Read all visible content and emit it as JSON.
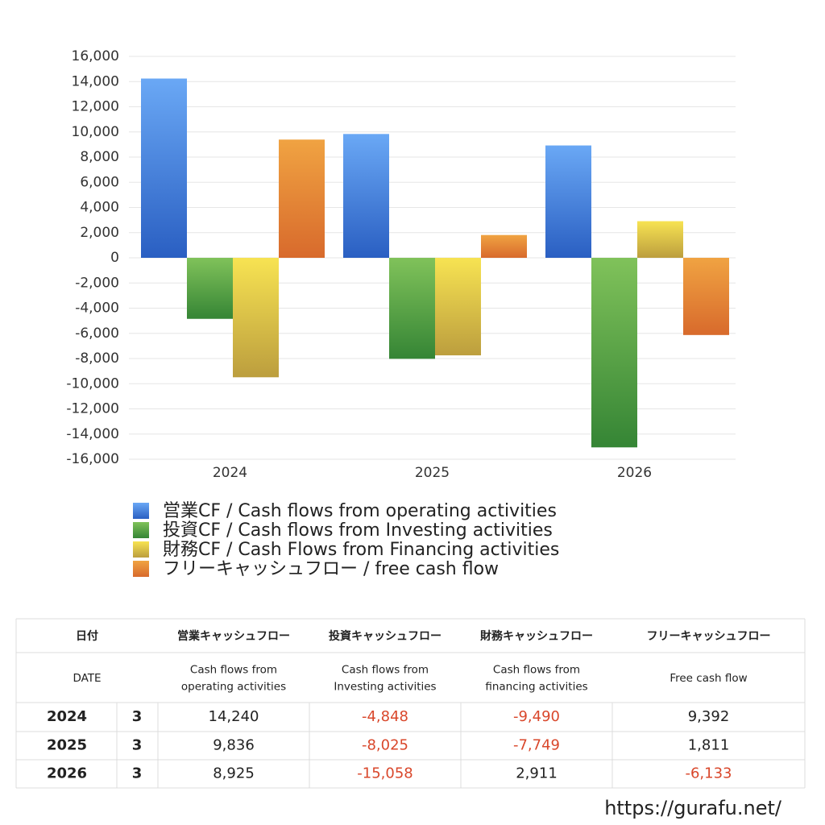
{
  "chart_data": {
    "type": "bar",
    "categories": [
      "2024",
      "2025",
      "2026"
    ],
    "series": [
      {
        "name": "営業CF / Cash flows from operating activities",
        "color": "#4a86e0",
        "gradient": [
          "#6aa8f5",
          "#2a5fc2"
        ],
        "values": [
          14240,
          9836,
          8925
        ],
        "value_labels": [
          "14,240",
          "9,836",
          "8,925"
        ]
      },
      {
        "name": "投資CF / Cash flows from Investing activities",
        "color": "#5aa545",
        "gradient": [
          "#80c25a",
          "#358535"
        ],
        "values": [
          -4848,
          -8025,
          -15058
        ],
        "value_labels": [
          "-4,848",
          "-8,025",
          "-15,058"
        ]
      },
      {
        "name": "財務CF / Cash Flows from Financing activities",
        "color": "#e6cc45",
        "gradient": [
          "#f7e352",
          "#bc9e3e"
        ],
        "values": [
          -9490,
          -7749,
          2911
        ],
        "value_labels": [
          "-9,490",
          "-7,749",
          "2,911"
        ]
      },
      {
        "name": "フリーキャッシュフロー / free cash flow",
        "color": "#e58a38",
        "gradient": [
          "#f0a342",
          "#d86a2c"
        ],
        "values": [
          9392,
          1811,
          -6133
        ],
        "value_labels": [
          "9,392",
          "1,811",
          "-6,133"
        ]
      }
    ],
    "ylim": [
      -16000,
      16000
    ],
    "yticks": [
      {
        "value": -16000,
        "label": "-16,000"
      },
      {
        "value": -14000,
        "label": "-14,000"
      },
      {
        "value": -12000,
        "label": "-12,000"
      },
      {
        "value": -10000,
        "label": "-10,000"
      },
      {
        "value": -8000,
        "label": "-8,000"
      },
      {
        "value": -6000,
        "label": "-6,000"
      },
      {
        "value": -4000,
        "label": "-4,000"
      },
      {
        "value": -2000,
        "label": "-2,000"
      },
      0,
      {
        "value": 2000,
        "label": "2,000"
      },
      {
        "value": 4000,
        "label": "4,000"
      },
      {
        "value": 6000,
        "label": "6,000"
      },
      {
        "value": 8000,
        "label": "8,000"
      },
      {
        "value": 10000,
        "label": "10,000"
      },
      {
        "value": 12000,
        "label": "12,000"
      },
      {
        "value": 14000,
        "label": "14,000"
      },
      {
        "value": 16000,
        "label": "16,000"
      }
    ],
    "grid": true,
    "negative_color": "#d9472b"
  },
  "table": {
    "headers_ja": [
      "日付",
      "営業キャッシュフロー",
      "投資キャッシュフロー",
      "財務キャッシュフロー",
      "フリーキャッシュフロー"
    ],
    "headers_en": [
      "DATE",
      "Cash flows from\noperating activities",
      "Cash flows from\nInvesting activities",
      "Cash flows from\nfinancing activities",
      "Free cash flow"
    ],
    "months": [
      "3",
      "3",
      "3"
    ]
  },
  "footer": "https://gurafu.net/"
}
